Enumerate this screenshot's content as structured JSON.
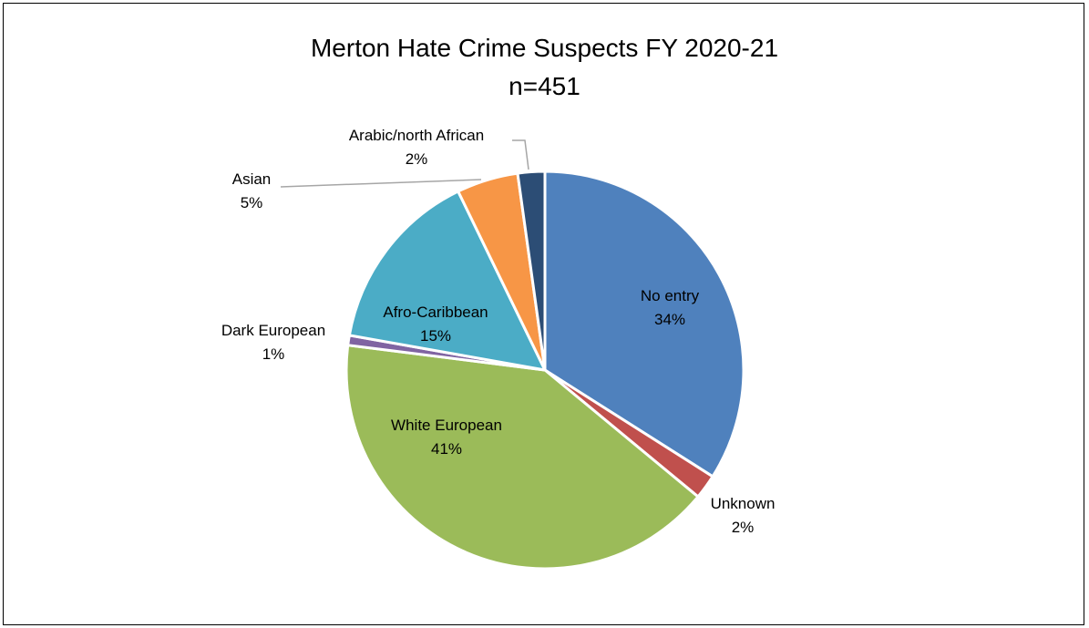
{
  "chart_data": {
    "type": "pie",
    "title": "Merton Hate Crime Suspects FY 2020-21",
    "subtitle": "n=451",
    "start_angle_deg": 0,
    "direction": "clockwise",
    "slices": [
      {
        "label": "No entry",
        "value": 34,
        "display": "34%",
        "color": "#4f81bd",
        "label_pos": "inside"
      },
      {
        "label": "Unknown",
        "value": 2,
        "display": "2%",
        "color": "#c0504d",
        "label_pos": "outside"
      },
      {
        "label": "White European",
        "value": 41,
        "display": "41%",
        "color": "#9bbb59",
        "label_pos": "inside"
      },
      {
        "label": "Dark European",
        "value": 0.8,
        "display": "1%",
        "color": "#8064a2",
        "label_pos": "outside"
      },
      {
        "label": "Afro-Caribbean",
        "value": 15,
        "display": "15%",
        "color": "#4bacc6",
        "label_pos": "inside"
      },
      {
        "label": "Asian",
        "value": 5,
        "display": "5%",
        "color": "#f79646",
        "label_pos": "outside-leader"
      },
      {
        "label": "Arabic/north African",
        "value": 2.2,
        "display": "2%",
        "color": "#2c4d75",
        "label_pos": "outside-leader"
      }
    ]
  }
}
